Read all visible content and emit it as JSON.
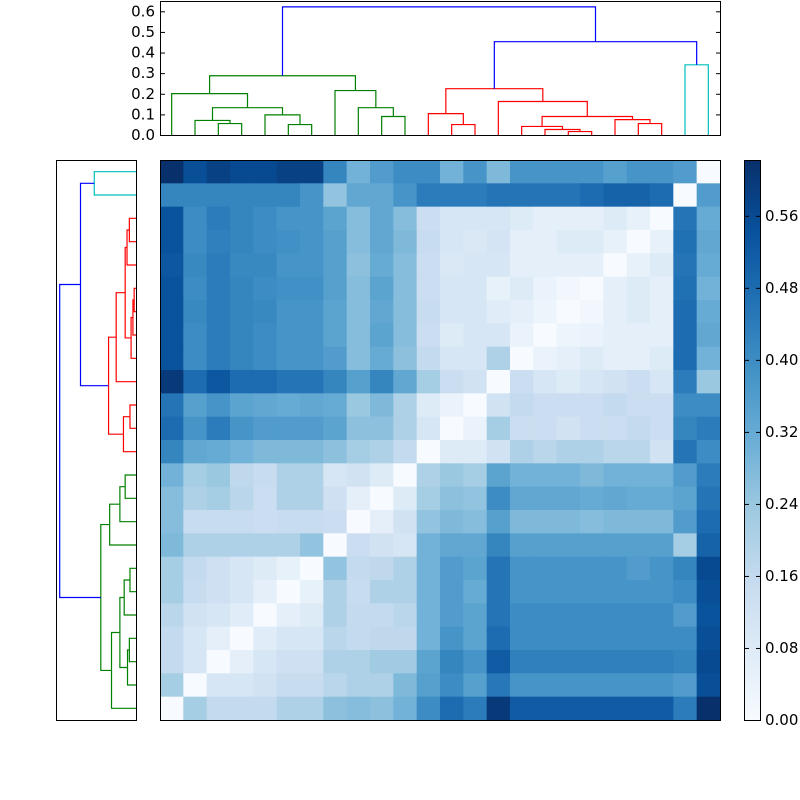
{
  "chart_data": [
    {
      "type": "dendrogram",
      "orientation": "top",
      "ylim": [
        0,
        0.65
      ],
      "yticks": [
        {
          "value": 0,
          "label": "0.0"
        },
        0.1,
        0.2,
        0.3,
        0.4,
        0.5,
        0.6
      ],
      "links": [
        {
          "children": [
            2,
            3
          ],
          "height": 0.058,
          "color": "#008000"
        },
        {
          "children": [
            1,
            24
          ],
          "height": 0.073,
          "color": "#008000"
        },
        {
          "children": [
            5,
            6
          ],
          "height": 0.053,
          "color": "#008000"
        },
        {
          "children": [
            4,
            26
          ],
          "height": 0.1,
          "color": "#008000"
        },
        {
          "children": [
            25,
            27
          ],
          "height": 0.135,
          "color": "#008000"
        },
        {
          "children": [
            0,
            28
          ],
          "height": 0.203,
          "color": "#008000"
        },
        {
          "children": [
            9,
            10
          ],
          "height": 0.092,
          "color": "#008000"
        },
        {
          "children": [
            8,
            30
          ],
          "height": 0.135,
          "color": "#008000"
        },
        {
          "children": [
            7,
            31
          ],
          "height": 0.218,
          "color": "#008000"
        },
        {
          "children": [
            29,
            32
          ],
          "height": 0.29,
          "color": "#008000"
        },
        {
          "children": [
            12,
            13
          ],
          "height": 0.053,
          "color": "#ff0000"
        },
        {
          "children": [
            11,
            34
          ],
          "height": 0.106,
          "color": "#ff0000"
        },
        {
          "children": [
            17,
            18
          ],
          "height": 0.019,
          "color": "#ff0000"
        },
        {
          "children": [
            16,
            36
          ],
          "height": 0.029,
          "color": "#ff0000"
        },
        {
          "children": [
            15,
            37
          ],
          "height": 0.044,
          "color": "#ff0000"
        },
        {
          "children": [
            20,
            21
          ],
          "height": 0.058,
          "color": "#ff0000"
        },
        {
          "children": [
            19,
            39
          ],
          "height": 0.077,
          "color": "#ff0000"
        },
        {
          "children": [
            38,
            40
          ],
          "height": 0.092,
          "color": "#ff0000"
        },
        {
          "children": [
            14,
            41
          ],
          "height": 0.165,
          "color": "#ff0000"
        },
        {
          "children": [
            35,
            42
          ],
          "height": 0.227,
          "color": "#ff0000"
        },
        {
          "children": [
            22,
            23
          ],
          "height": 0.343,
          "color": "#00bfbf"
        },
        {
          "children": [
            43,
            44
          ],
          "height": 0.455,
          "color": "#0000ff"
        },
        {
          "children": [
            33,
            45
          ],
          "height": 0.624,
          "color": "#0000ff"
        }
      ]
    },
    {
      "type": "dendrogram",
      "orientation": "left",
      "xlim": [
        0.65,
        0
      ],
      "links": [
        {
          "children": [
            2,
            3
          ],
          "height": 0.058,
          "color": "#008000"
        },
        {
          "children": [
            1,
            24
          ],
          "height": 0.073,
          "color": "#008000"
        },
        {
          "children": [
            5,
            6
          ],
          "height": 0.053,
          "color": "#008000"
        },
        {
          "children": [
            4,
            26
          ],
          "height": 0.1,
          "color": "#008000"
        },
        {
          "children": [
            25,
            27
          ],
          "height": 0.135,
          "color": "#008000"
        },
        {
          "children": [
            0,
            28
          ],
          "height": 0.203,
          "color": "#008000"
        },
        {
          "children": [
            9,
            10
          ],
          "height": 0.092,
          "color": "#008000"
        },
        {
          "children": [
            8,
            30
          ],
          "height": 0.135,
          "color": "#008000"
        },
        {
          "children": [
            7,
            31
          ],
          "height": 0.218,
          "color": "#008000"
        },
        {
          "children": [
            29,
            32
          ],
          "height": 0.29,
          "color": "#008000"
        },
        {
          "children": [
            12,
            13
          ],
          "height": 0.053,
          "color": "#ff0000"
        },
        {
          "children": [
            11,
            34
          ],
          "height": 0.106,
          "color": "#ff0000"
        },
        {
          "children": [
            17,
            18
          ],
          "height": 0.019,
          "color": "#ff0000"
        },
        {
          "children": [
            16,
            36
          ],
          "height": 0.029,
          "color": "#ff0000"
        },
        {
          "children": [
            15,
            37
          ],
          "height": 0.044,
          "color": "#ff0000"
        },
        {
          "children": [
            20,
            21
          ],
          "height": 0.058,
          "color": "#ff0000"
        },
        {
          "children": [
            19,
            39
          ],
          "height": 0.077,
          "color": "#ff0000"
        },
        {
          "children": [
            38,
            40
          ],
          "height": 0.092,
          "color": "#ff0000"
        },
        {
          "children": [
            14,
            41
          ],
          "height": 0.165,
          "color": "#ff0000"
        },
        {
          "children": [
            35,
            42
          ],
          "height": 0.227,
          "color": "#ff0000"
        },
        {
          "children": [
            22,
            23
          ],
          "height": 0.343,
          "color": "#00bfbf"
        },
        {
          "children": [
            43,
            44
          ],
          "height": 0.455,
          "color": "#0000ff"
        },
        {
          "children": [
            33,
            45
          ],
          "height": 0.624,
          "color": "#0000ff"
        }
      ]
    },
    {
      "type": "heatmap",
      "colormap": [
        "#f7fbff",
        "#deebf7",
        "#c6dbef",
        "#9ecae1",
        "#6baed6",
        "#4292c6",
        "#2171b5",
        "#08519c",
        "#08306b"
      ],
      "clim": [
        0,
        0.622
      ],
      "cticks": [
        {
          "value": 0,
          "label": "0.00"
        },
        0.08,
        0.16,
        0.24,
        0.32,
        {
          "value": 0.4,
          "label": "0.40"
        },
        0.48,
        0.56
      ],
      "values": [
        [
          0.62,
          0.55,
          0.58,
          0.56,
          0.56,
          0.58,
          0.58,
          0.42,
          0.3,
          0.36,
          0.4,
          0.4,
          0.3,
          0.38,
          0.28,
          0.38,
          0.38,
          0.38,
          0.38,
          0.35,
          0.38,
          0.38,
          0.36,
          0
        ],
        [
          0.42,
          0.42,
          0.42,
          0.42,
          0.42,
          0.42,
          0.38,
          0.25,
          0.33,
          0.33,
          0.38,
          0.44,
          0.44,
          0.44,
          0.46,
          0.46,
          0.46,
          0.46,
          0.48,
          0.5,
          0.5,
          0.48,
          0,
          0.36
        ],
        [
          0.54,
          0.4,
          0.44,
          0.42,
          0.4,
          0.38,
          0.38,
          0.34,
          0.27,
          0.33,
          0.27,
          0.14,
          0.1,
          0.1,
          0.1,
          0.08,
          0.06,
          0.06,
          0.06,
          0.08,
          0.05,
          0,
          0.46,
          0.32
        ],
        [
          0.54,
          0.4,
          0.43,
          0.42,
          0.4,
          0.39,
          0.38,
          0.35,
          0.27,
          0.33,
          0.28,
          0.15,
          0.1,
          0.09,
          0.11,
          0.06,
          0.06,
          0.08,
          0.08,
          0.05,
          0,
          0.05,
          0.47,
          0.33
        ],
        [
          0.53,
          0.41,
          0.44,
          0.41,
          0.41,
          0.38,
          0.38,
          0.35,
          0.26,
          0.32,
          0.27,
          0.14,
          0.09,
          0.1,
          0.1,
          0.06,
          0.06,
          0.06,
          0.06,
          0,
          0.05,
          0.08,
          0.46,
          0.32
        ],
        [
          0.54,
          0.4,
          0.44,
          0.42,
          0.4,
          0.39,
          0.39,
          0.35,
          0.27,
          0.34,
          0.27,
          0.14,
          0.1,
          0.1,
          0.05,
          0.08,
          0.04,
          0.02,
          0,
          0.06,
          0.08,
          0.06,
          0.47,
          0.3
        ],
        [
          0.54,
          0.41,
          0.44,
          0.42,
          0.41,
          0.38,
          0.38,
          0.34,
          0.27,
          0.33,
          0.27,
          0.15,
          0.1,
          0.1,
          0.07,
          0.06,
          0.03,
          0,
          0.02,
          0.06,
          0.08,
          0.06,
          0.48,
          0.32
        ],
        [
          0.54,
          0.4,
          0.44,
          0.42,
          0.4,
          0.38,
          0.38,
          0.34,
          0.27,
          0.34,
          0.27,
          0.14,
          0.08,
          0.1,
          0.1,
          0.04,
          0,
          0.03,
          0.04,
          0.06,
          0.06,
          0.06,
          0.48,
          0.33
        ],
        [
          0.54,
          0.4,
          0.44,
          0.42,
          0.4,
          0.38,
          0.38,
          0.36,
          0.27,
          0.32,
          0.26,
          0.16,
          0.1,
          0.1,
          0.2,
          0,
          0.04,
          0.06,
          0.08,
          0.06,
          0.06,
          0.08,
          0.48,
          0.3
        ],
        [
          0.6,
          0.48,
          0.53,
          0.48,
          0.48,
          0.46,
          0.46,
          0.42,
          0.35,
          0.42,
          0.33,
          0.22,
          0.14,
          0.12,
          0,
          0.14,
          0.1,
          0.08,
          0.1,
          0.12,
          0.14,
          0.1,
          0.44,
          0.24
        ],
        [
          0.46,
          0.35,
          0.38,
          0.34,
          0.33,
          0.32,
          0.33,
          0.32,
          0.24,
          0.28,
          0.2,
          0.08,
          0.04,
          0,
          0.12,
          0.16,
          0.14,
          0.14,
          0.14,
          0.16,
          0.14,
          0.14,
          0.4,
          0.4
        ],
        [
          0.48,
          0.38,
          0.44,
          0.38,
          0.36,
          0.36,
          0.36,
          0.34,
          0.26,
          0.26,
          0.2,
          0.1,
          0,
          0.04,
          0.22,
          0.14,
          0.14,
          0.12,
          0.14,
          0.14,
          0.16,
          0.14,
          0.42,
          0.44
        ],
        [
          0.42,
          0.33,
          0.32,
          0.3,
          0.28,
          0.28,
          0.28,
          0.26,
          0.22,
          0.2,
          0.16,
          0,
          0.08,
          0.08,
          0.12,
          0.2,
          0.18,
          0.2,
          0.2,
          0.18,
          0.18,
          0.12,
          0.46,
          0.4
        ],
        [
          0.3,
          0.22,
          0.24,
          0.17,
          0.15,
          0.2,
          0.2,
          0.1,
          0.12,
          0.08,
          0,
          0.2,
          0.24,
          0.22,
          0.34,
          0.3,
          0.3,
          0.3,
          0.28,
          0.3,
          0.3,
          0.3,
          0.36,
          0.44
        ],
        [
          0.27,
          0.2,
          0.22,
          0.18,
          0.14,
          0.2,
          0.2,
          0.13,
          0.06,
          0,
          0.08,
          0.22,
          0.26,
          0.25,
          0.4,
          0.33,
          0.33,
          0.33,
          0.32,
          0.33,
          0.32,
          0.32,
          0.34,
          0.46
        ],
        [
          0.27,
          0.15,
          0.15,
          0.15,
          0.14,
          0.15,
          0.15,
          0.14,
          0,
          0.06,
          0.12,
          0.25,
          0.28,
          0.27,
          0.35,
          0.28,
          0.28,
          0.28,
          0.27,
          0.28,
          0.28,
          0.28,
          0.36,
          0.48
        ],
        [
          0.28,
          0.2,
          0.2,
          0.2,
          0.2,
          0.2,
          0.25,
          0,
          0.14,
          0.12,
          0.1,
          0.3,
          0.33,
          0.33,
          0.42,
          0.35,
          0.35,
          0.35,
          0.35,
          0.35,
          0.35,
          0.35,
          0.22,
          0.5
        ],
        [
          0.22,
          0.16,
          0.13,
          0.1,
          0.08,
          0.05,
          0,
          0.25,
          0.16,
          0.17,
          0.2,
          0.3,
          0.36,
          0.34,
          0.46,
          0.38,
          0.38,
          0.38,
          0.38,
          0.38,
          0.36,
          0.38,
          0.42,
          0.56
        ],
        [
          0.22,
          0.15,
          0.13,
          0.1,
          0.06,
          0,
          0.05,
          0.2,
          0.15,
          0.2,
          0.2,
          0.3,
          0.36,
          0.32,
          0.46,
          0.38,
          0.38,
          0.38,
          0.38,
          0.38,
          0.38,
          0.38,
          0.4,
          0.55
        ],
        [
          0.18,
          0.12,
          0.1,
          0.07,
          0,
          0.06,
          0.08,
          0.2,
          0.16,
          0.16,
          0.18,
          0.3,
          0.36,
          0.34,
          0.46,
          0.4,
          0.4,
          0.4,
          0.4,
          0.4,
          0.4,
          0.4,
          0.36,
          0.54
        ],
        [
          0.16,
          0.1,
          0.06,
          0,
          0.07,
          0.1,
          0.1,
          0.18,
          0.16,
          0.17,
          0.17,
          0.3,
          0.38,
          0.34,
          0.48,
          0.4,
          0.4,
          0.4,
          0.4,
          0.4,
          0.4,
          0.4,
          0.4,
          0.55
        ],
        [
          0.16,
          0.1,
          0,
          0.06,
          0.1,
          0.13,
          0.13,
          0.2,
          0.2,
          0.23,
          0.23,
          0.34,
          0.42,
          0.38,
          0.52,
          0.43,
          0.43,
          0.43,
          0.43,
          0.43,
          0.43,
          0.43,
          0.42,
          0.56
        ],
        [
          0.22,
          0,
          0.1,
          0.1,
          0.12,
          0.15,
          0.15,
          0.18,
          0.2,
          0.2,
          0.28,
          0.35,
          0.4,
          0.35,
          0.45,
          0.38,
          0.38,
          0.38,
          0.38,
          0.38,
          0.38,
          0.38,
          0.36,
          0.55
        ],
        [
          0,
          0.22,
          0.16,
          0.16,
          0.16,
          0.2,
          0.2,
          0.26,
          0.27,
          0.26,
          0.3,
          0.4,
          0.48,
          0.44,
          0.6,
          0.52,
          0.52,
          0.52,
          0.52,
          0.52,
          0.52,
          0.52,
          0.44,
          0.62
        ]
      ]
    }
  ]
}
